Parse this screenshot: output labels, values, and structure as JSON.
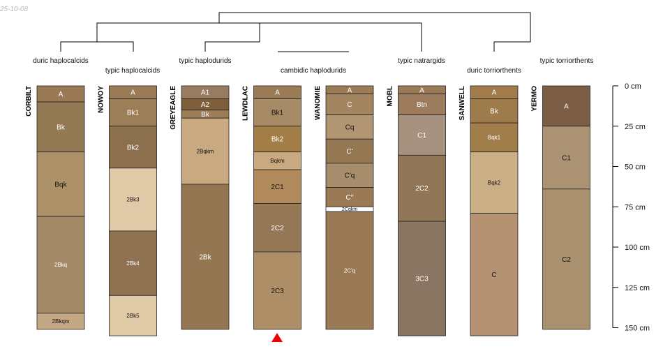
{
  "stamp": "25-10-08",
  "groups": {
    "duric_haplocalcids": "duric haplocalcids",
    "typic_haplocalcids": "typic haplocalcids",
    "typic_haplodurids": "typic haplodurids",
    "cambidic_haplodurids": "cambidic haplodurids",
    "typic_natrargids": "typic natrargids",
    "duric_torriorthents": "duric torriorthents",
    "typic_torriorthents": "typic torriorthents"
  },
  "depth_axis": {
    "unit": "cm",
    "ticks": [
      0,
      25,
      50,
      75,
      100,
      125,
      150
    ],
    "labels": [
      "0 cm",
      "25 cm",
      "50 cm",
      "75 cm",
      "100 cm",
      "125 cm",
      "150 cm"
    ]
  },
  "profiles": [
    {
      "name": "CORBILT",
      "horizons": [
        {
          "name": "A",
          "top": 0,
          "bottom": 10,
          "color": "#9a7a55",
          "fs": 10,
          "tc": "#ffffff"
        },
        {
          "name": "Bk",
          "top": 10,
          "bottom": 41,
          "color": "#937a55",
          "fs": 10,
          "tc": "#ffffff"
        },
        {
          "name": "Bqk",
          "top": 41,
          "bottom": 81,
          "color": "#ac9068",
          "fs": 10,
          "tc": "#111111"
        },
        {
          "name": "2Bkq",
          "top": 81,
          "bottom": 141,
          "color": "#a48a66",
          "fs": 8,
          "tc": "#ffffff"
        },
        {
          "name": "2Bkqm",
          "top": 141,
          "bottom": 151,
          "color": "#c4a883",
          "fs": 8,
          "tc": "#111111"
        }
      ]
    },
    {
      "name": "NOWOY",
      "horizons": [
        {
          "name": "A",
          "top": 0,
          "bottom": 8,
          "color": "#9b7b55",
          "fs": 10,
          "tc": "#ffffff"
        },
        {
          "name": "Bk1",
          "top": 8,
          "bottom": 25,
          "color": "#9c7e59",
          "fs": 10,
          "tc": "#ffffff"
        },
        {
          "name": "Bk2",
          "top": 25,
          "bottom": 51,
          "color": "#8c6f4d",
          "fs": 10,
          "tc": "#ffffff"
        },
        {
          "name": "2Bk3",
          "top": 51,
          "bottom": 90,
          "color": "#e0c9a6",
          "fs": 8,
          "tc": "#111111"
        },
        {
          "name": "2Bk4",
          "top": 90,
          "bottom": 130,
          "color": "#8e7252",
          "fs": 8,
          "tc": "#ffffff"
        },
        {
          "name": "2Bk5",
          "top": 130,
          "bottom": 155,
          "color": "#e0c9a6",
          "fs": 8,
          "tc": "#111111"
        }
      ]
    },
    {
      "name": "GREYEAGLE",
      "horizons": [
        {
          "name": "A1",
          "top": 0,
          "bottom": 8,
          "color": "#977c61",
          "fs": 10,
          "tc": "#ffffff"
        },
        {
          "name": "A2",
          "top": 8,
          "bottom": 15,
          "color": "#7f5f39",
          "fs": 10,
          "tc": "#ffffff"
        },
        {
          "name": "Bk",
          "top": 15,
          "bottom": 20,
          "color": "#9c7d57",
          "fs": 10,
          "tc": "#ffffff"
        },
        {
          "name": "2Bqkm",
          "top": 20,
          "bottom": 61,
          "color": "#c9a97f",
          "fs": 8,
          "tc": "#111111"
        },
        {
          "name": "2Bk",
          "top": 61,
          "bottom": 151,
          "color": "#947752",
          "fs": 10,
          "tc": "#ffffff"
        }
      ]
    },
    {
      "name": "LEWDLAC",
      "horizons": [
        {
          "name": "A",
          "top": 0,
          "bottom": 8,
          "color": "#9b7b55",
          "fs": 10,
          "tc": "#ffffff"
        },
        {
          "name": "Bk1",
          "top": 8,
          "bottom": 25,
          "color": "#a78b67",
          "fs": 10,
          "tc": "#111111"
        },
        {
          "name": "Bk2",
          "top": 25,
          "bottom": 41,
          "color": "#a27d45",
          "fs": 10,
          "tc": "#ffffff"
        },
        {
          "name": "Bqkm",
          "top": 41,
          "bottom": 52,
          "color": "#c9a97f",
          "fs": 8,
          "tc": "#111111"
        },
        {
          "name": "2C1",
          "top": 52,
          "bottom": 73,
          "color": "#b08a5a",
          "fs": 10,
          "tc": "#111111"
        },
        {
          "name": "2C2",
          "top": 73,
          "bottom": 103,
          "color": "#957956",
          "fs": 10,
          "tc": "#ffffff"
        },
        {
          "name": "2C3",
          "top": 103,
          "bottom": 151,
          "color": "#ae8e67",
          "fs": 10,
          "tc": "#111111"
        }
      ]
    },
    {
      "name": "WANOMIE",
      "horizons": [
        {
          "name": "A",
          "top": 0,
          "bottom": 5,
          "color": "#9a7b55",
          "fs": 10,
          "tc": "#ffffff"
        },
        {
          "name": "C",
          "top": 5,
          "bottom": 18,
          "color": "#a3865f",
          "fs": 10,
          "tc": "#ffffff"
        },
        {
          "name": "Cq",
          "top": 18,
          "bottom": 33,
          "color": "#b29674",
          "fs": 10,
          "tc": "#111111"
        },
        {
          "name": "C'",
          "top": 33,
          "bottom": 48,
          "color": "#967754",
          "fs": 10,
          "tc": "#ffffff"
        },
        {
          "name": "C'q",
          "top": 48,
          "bottom": 63,
          "color": "#a88d6c",
          "fs": 10,
          "tc": "#111111"
        },
        {
          "name": "C''",
          "top": 63,
          "bottom": 75,
          "color": "#9a7a55",
          "fs": 10,
          "tc": "#ffffff"
        },
        {
          "name": "2Cqkm",
          "top": 75,
          "bottom": 78,
          "color": "#ffffff",
          "fs": 7,
          "tc": "#111111"
        },
        {
          "name": "2C'q",
          "top": 78,
          "bottom": 151,
          "color": "#9a7a55",
          "fs": 8,
          "tc": "#ffffff"
        }
      ]
    },
    {
      "name": "MOBL",
      "horizons": [
        {
          "name": "A",
          "top": 0,
          "bottom": 5,
          "color": "#9b7b55",
          "fs": 10,
          "tc": "#ffffff"
        },
        {
          "name": "Btn",
          "top": 5,
          "bottom": 18,
          "color": "#9d7b5d",
          "fs": 10,
          "tc": "#ffffff"
        },
        {
          "name": "C1",
          "top": 18,
          "bottom": 43,
          "color": "#a6917f",
          "fs": 10,
          "tc": "#ffffff"
        },
        {
          "name": "2C2",
          "top": 43,
          "bottom": 84,
          "color": "#927658",
          "fs": 10,
          "tc": "#ffffff"
        },
        {
          "name": "3C3",
          "top": 84,
          "bottom": 155,
          "color": "#8a7562",
          "fs": 10,
          "tc": "#ffffff"
        }
      ]
    },
    {
      "name": "SANWELL",
      "horizons": [
        {
          "name": "A",
          "top": 0,
          "bottom": 8,
          "color": "#a17c4a",
          "fs": 10,
          "tc": "#ffffff"
        },
        {
          "name": "Bk",
          "top": 8,
          "bottom": 23,
          "color": "#9e7b4a",
          "fs": 10,
          "tc": "#ffffff"
        },
        {
          "name": "Bqk1",
          "top": 23,
          "bottom": 41,
          "color": "#a17d4a",
          "fs": 8,
          "tc": "#ffffff"
        },
        {
          "name": "Bqk2",
          "top": 41,
          "bottom": 79,
          "color": "#cbaf86",
          "fs": 8,
          "tc": "#111111"
        },
        {
          "name": "C",
          "top": 79,
          "bottom": 155,
          "color": "#b59271",
          "fs": 10,
          "tc": "#111111"
        }
      ]
    },
    {
      "name": "YERMO",
      "horizons": [
        {
          "name": "A",
          "top": 0,
          "bottom": 25,
          "color": "#7a5d42",
          "fs": 10,
          "tc": "#ffffff"
        },
        {
          "name": "C1",
          "top": 25,
          "bottom": 64,
          "color": "#ab9272",
          "fs": 10,
          "tc": "#111111"
        },
        {
          "name": "C2",
          "top": 64,
          "bottom": 151,
          "color": "#a99170",
          "fs": 10,
          "tc": "#111111"
        }
      ]
    }
  ]
}
